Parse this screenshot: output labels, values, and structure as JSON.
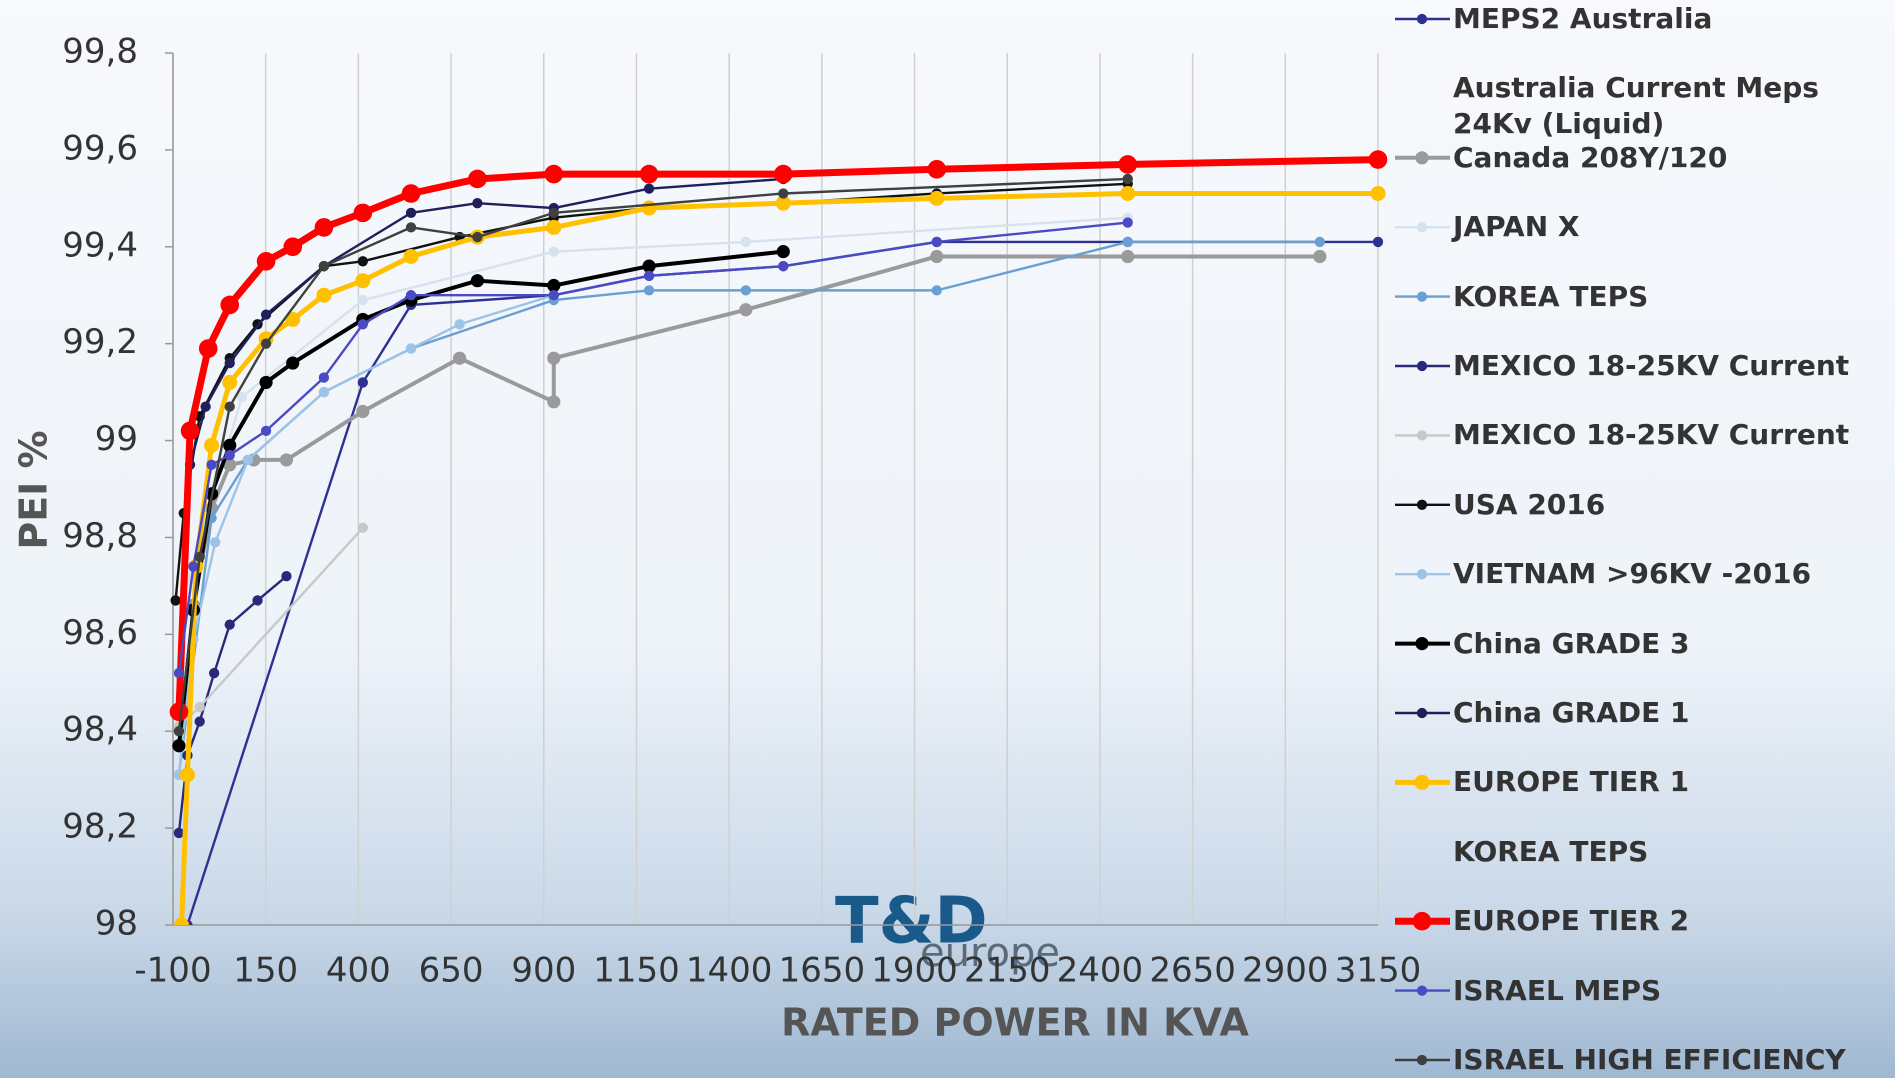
{
  "chart_data": {
    "type": "line",
    "xlabel": "RATED POWER IN KVA",
    "ylabel": "PEI %",
    "xlim": [
      -100,
      3150
    ],
    "xticks": [
      -100,
      150,
      400,
      650,
      900,
      1150,
      1400,
      1650,
      1900,
      2150,
      2400,
      2650,
      2900,
      3150
    ],
    "ylim": [
      98,
      99.8
    ],
    "yticks": [
      98,
      {
        "value": 98.2,
        "label": "98,2"
      },
      {
        "value": 98.4,
        "label": "98,4"
      },
      {
        "value": 98.6,
        "label": "98,6"
      },
      {
        "value": 98.8,
        "label": "98,8"
      },
      99,
      {
        "value": 99.2,
        "label": "99,2"
      },
      {
        "value": 99.4,
        "label": "99,4"
      },
      {
        "value": 99.6,
        "label": "99,6"
      },
      {
        "value": 99.8,
        "label": "99,8"
      }
    ],
    "grid": "x",
    "legend": "right",
    "logo": {
      "text": "T&D",
      "subtext": "europe"
    },
    "series": [
      {
        "name": "MEPS2 Australia",
        "color": "#2e3192",
        "width": 2.4,
        "x": [
          -61,
          412,
          542,
          927,
          1184,
          1546,
          1960,
          2475,
          3150
        ],
        "values": [
          98.0,
          99.12,
          99.28,
          99.3,
          99.34,
          99.36,
          99.41,
          99.41,
          99.41
        ]
      },
      {
        "name": "Australia Current Meps 24Kv (Liquid)",
        "x": [],
        "values": []
      },
      {
        "name": "Canada 208Y/120",
        "color": "#9a9a9a",
        "width": 4,
        "x": [
          -45,
          4,
          53,
          118,
          206,
          412,
          673,
          927,
          927,
          1445,
          1960,
          2475,
          2993
        ],
        "values": [
          98.66,
          98.86,
          98.95,
          98.96,
          98.96,
          99.06,
          99.17,
          99.08,
          99.17,
          99.27,
          99.38,
          99.38,
          99.38
        ]
      },
      {
        "name": "JAPAN X",
        "color": "#d6e2f0",
        "width": 2.4,
        "x": [
          -61,
          86,
          412,
          927,
          1445,
          2475
        ],
        "values": [
          98.71,
          99.09,
          99.29,
          99.39,
          99.41,
          99.46
        ]
      },
      {
        "name": "KOREA TEPS",
        "color": "#6a9fd1",
        "width": 2.4,
        "x": [
          -84,
          4,
          102,
          307,
          542,
          927,
          1184,
          1445,
          1960,
          2475,
          2993
        ],
        "values": [
          98.31,
          98.84,
          98.96,
          99.1,
          99.19,
          99.29,
          99.31,
          99.31,
          99.31,
          99.41,
          99.41
        ]
      },
      {
        "name": "MEXICO 18-25KV Current",
        "color": "#29297a",
        "width": 2.4,
        "x": [
          -84,
          -61,
          -28,
          11,
          53,
          128,
          206
        ],
        "values": [
          98.19,
          98.35,
          98.42,
          98.52,
          98.62,
          98.67,
          98.72
        ]
      },
      {
        "name": "MEXICO 18-25KV Current",
        "color": "#c8c8c8",
        "width": 2.4,
        "x": [
          -84,
          -28,
          412
        ],
        "values": [
          98.41,
          98.45,
          98.82
        ]
      },
      {
        "name": "USA 2016",
        "color": "#111111",
        "width": 2.4,
        "x": [
          -93,
          -71,
          -28,
          53,
          128,
          307,
          412,
          673,
          927,
          1184,
          1546,
          1960,
          2475
        ],
        "values": [
          98.67,
          98.85,
          99.05,
          99.17,
          99.24,
          99.36,
          99.37,
          99.42,
          99.46,
          99.48,
          99.49,
          99.51,
          99.53
        ]
      },
      {
        "name": "VIETNAM >96KV -2016",
        "color": "#9dc3e6",
        "width": 2.4,
        "x": [
          -84,
          -45,
          14,
          102,
          307,
          542,
          673,
          927
        ],
        "values": [
          98.31,
          98.59,
          98.79,
          98.96,
          99.1,
          99.19,
          99.24,
          99.3
        ]
      },
      {
        "name": "China GRADE 3",
        "color": "#000000",
        "width": 4,
        "x": [
          -84,
          -45,
          4,
          53,
          151,
          223,
          412,
          542,
          721,
          927,
          1184,
          1546
        ],
        "values": [
          98.37,
          98.65,
          98.89,
          98.99,
          99.12,
          99.16,
          99.25,
          99.29,
          99.33,
          99.32,
          99.36,
          99.39
        ]
      },
      {
        "name": "China GRADE 1",
        "color": "#1f1f5c",
        "width": 2.4,
        "x": [
          -54,
          -12,
          53,
          151,
          307,
          542,
          721,
          927,
          1184,
          1546
        ],
        "values": [
          98.95,
          99.07,
          99.16,
          99.26,
          99.36,
          99.47,
          99.49,
          99.48,
          99.52,
          99.54
        ]
      },
      {
        "name": "EUROPE TIER 1",
        "color": "#ffc000",
        "width": 5,
        "x": [
          -77,
          -61,
          -38,
          4,
          53,
          151,
          223,
          307,
          412,
          542,
          721,
          927,
          1184,
          1546,
          1960,
          2475,
          3150
        ],
        "values": [
          98.0,
          98.31,
          98.74,
          98.99,
          99.12,
          99.21,
          99.25,
          99.3,
          99.33,
          99.38,
          99.42,
          99.44,
          99.48,
          99.49,
          99.5,
          99.51,
          99.51
        ]
      },
      {
        "name": "KOREA TEPS",
        "x": [],
        "values": []
      },
      {
        "name": "EUROPE TIER 2",
        "color": "#ff0000",
        "width": 7,
        "x": [
          -84,
          -54,
          -5,
          53,
          151,
          223,
          307,
          412,
          542,
          721,
          927,
          1184,
          1546,
          1960,
          2475,
          3150
        ],
        "values": [
          98.44,
          99.02,
          99.19,
          99.28,
          99.37,
          99.4,
          99.44,
          99.47,
          99.51,
          99.54,
          99.55,
          99.55,
          99.55,
          99.56,
          99.57,
          99.58
        ]
      },
      {
        "name": "ISRAEL MEPS",
        "color": "#4a4ac4",
        "width": 2.4,
        "x": [
          -84,
          -45,
          4,
          53,
          151,
          307,
          412,
          542,
          927,
          1184,
          1546,
          1960,
          2475
        ],
        "values": [
          98.52,
          98.74,
          98.95,
          98.97,
          99.02,
          99.13,
          99.24,
          99.3,
          99.3,
          99.34,
          99.36,
          99.41,
          99.45
        ]
      },
      {
        "name": "ISRAEL HIGH EFFICIENCY",
        "color": "#404040",
        "width": 2.4,
        "x": [
          -84,
          -28,
          53,
          151,
          307,
          542,
          721,
          927,
          1546,
          2475
        ],
        "values": [
          98.4,
          98.76,
          99.07,
          99.2,
          99.36,
          99.44,
          99.42,
          99.47,
          99.51,
          99.54
        ]
      }
    ]
  }
}
